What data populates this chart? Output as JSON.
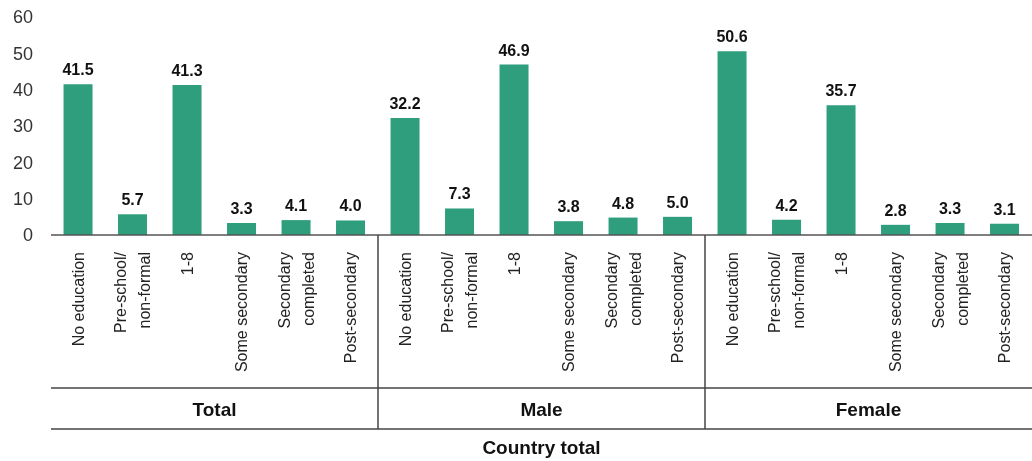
{
  "chart_data": {
    "type": "bar",
    "categories": [
      "No education",
      "Pre-school/\nnon-formal",
      "1-8",
      "Some secondary",
      "Secondary\ncompleted",
      "Post-secondary",
      "No education",
      "Pre-school/\nnon-formal",
      "1-8",
      "Some secondary",
      "Secondary\ncompleted",
      "Post-secondary",
      "No education",
      "Pre-school/\nnon-formal",
      "1-8",
      "Some secondary",
      "Secondary\ncompleted",
      "Post-secondary"
    ],
    "values": [
      41.5,
      5.7,
      41.3,
      3.3,
      4.1,
      4.0,
      32.2,
      7.3,
      46.9,
      3.8,
      4.8,
      5.0,
      50.6,
      4.2,
      35.7,
      2.8,
      3.3,
      3.1
    ],
    "value_labels": [
      "41.5",
      "5.7",
      "41.3",
      "3.3",
      "4.1",
      "4.0",
      "32.2",
      "7.3",
      "46.9",
      "3.8",
      "4.8",
      "5.0",
      "50.6",
      "4.2",
      "35.7",
      "2.8",
      "3.3",
      "3.1"
    ],
    "color": "#2f9e7d",
    "ylim": [
      0,
      60
    ],
    "yticks": [
      0,
      10,
      20,
      30,
      40,
      50,
      60
    ],
    "xlabel": "Country total",
    "annotations": [
      "Total",
      "Male",
      "Female"
    ]
  }
}
